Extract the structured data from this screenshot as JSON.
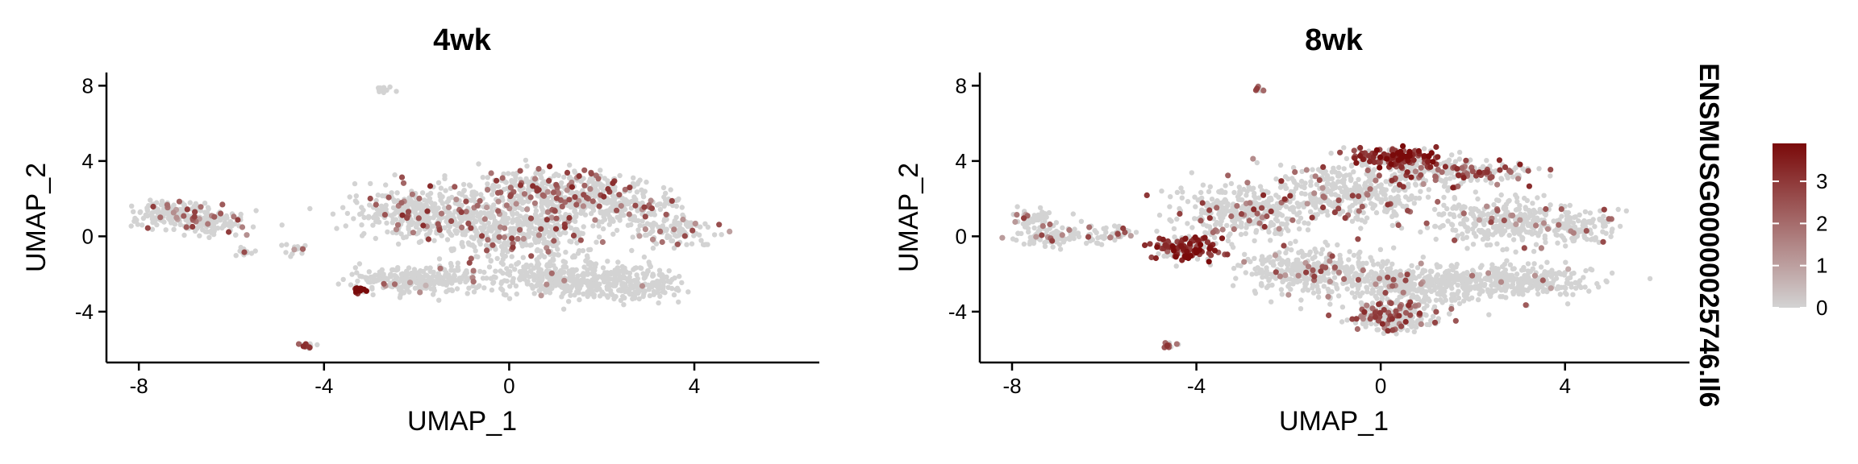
{
  "figure": {
    "legend": {
      "title": "ENSMUSG00000025746.Il6",
      "ticks": [
        0,
        1,
        2,
        3
      ],
      "range": [
        0,
        3.9
      ],
      "colors": [
        "#d3d3d3",
        "#7a0a0a"
      ]
    }
  },
  "chart_data": [
    {
      "type": "scatter",
      "title": "4wk",
      "xlabel": "UMAP_1",
      "ylabel": "UMAP_2",
      "xlim": [
        -8.7,
        6.7
      ],
      "ylim": [
        -6.7,
        8.7
      ],
      "xticks": [
        -8,
        -4,
        0,
        4
      ],
      "yticks": [
        -4,
        0,
        4,
        8
      ],
      "grid": false,
      "points_summary": "single-cell embedding; grey = no expression, red gradient = Il6 expression"
    },
    {
      "type": "scatter",
      "title": "8wk",
      "xlabel": "UMAP_1",
      "ylabel": "UMAP_2",
      "xlim": [
        -8.7,
        6.7
      ],
      "ylim": [
        -6.7,
        8.7
      ],
      "xticks": [
        -8,
        -4,
        0,
        4
      ],
      "yticks": [
        -4,
        0,
        4,
        8
      ],
      "grid": false,
      "points_summary": "single-cell embedding; grey = no expression, red gradient = Il6 expression"
    }
  ]
}
